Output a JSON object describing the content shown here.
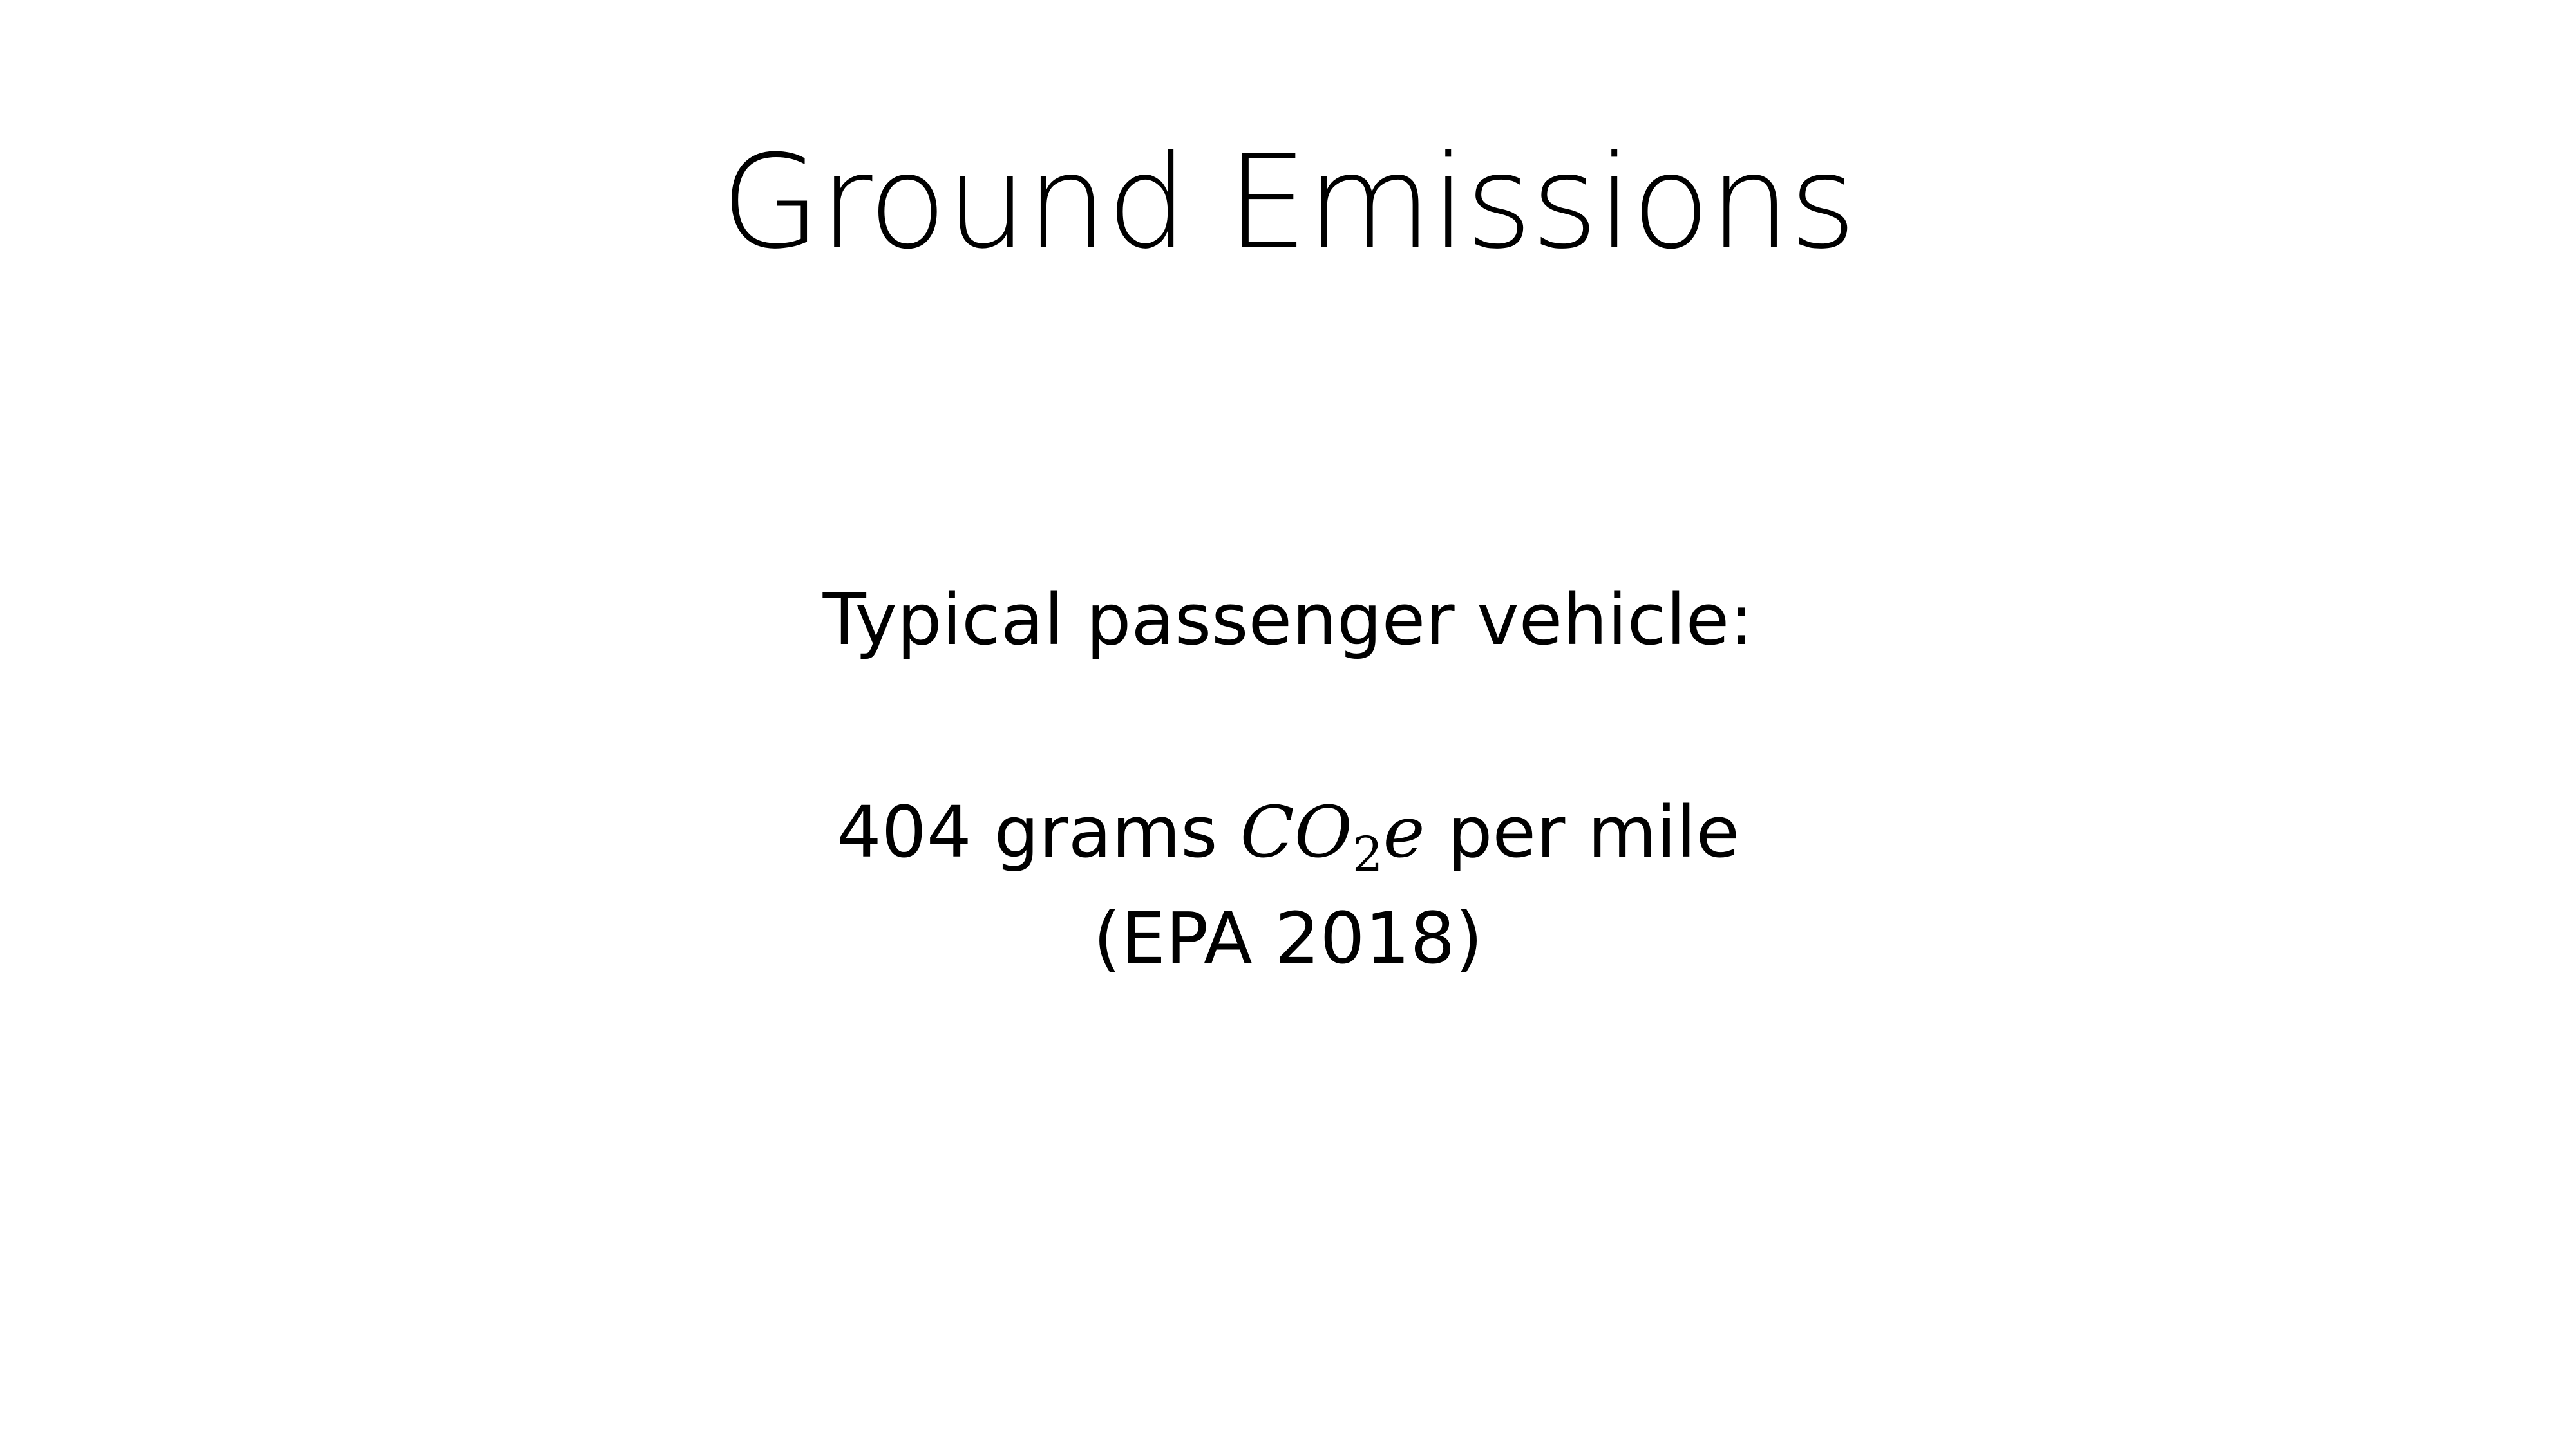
{
  "slide": {
    "title": "Ground Emissions",
    "lines": {
      "vehicle_label": "Typical passenger vehicle:",
      "value": "404 grams",
      "unit_symbol": "CO",
      "unit_subscript": "2",
      "unit_suffix": "e",
      "per": "per mile",
      "citation": "(EPA 2018)"
    }
  }
}
